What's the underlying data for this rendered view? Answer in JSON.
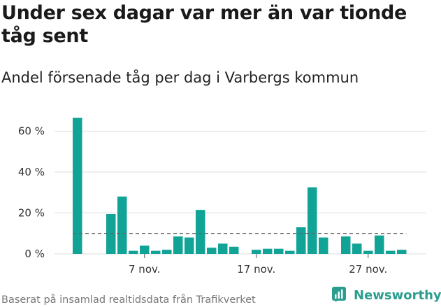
{
  "header": {
    "title": "Under sex dagar var mer än var tionde tåg sent",
    "subtitle": "Andel försenade tåg per dag i Varbergs kommun"
  },
  "footer": {
    "source": "Baserat på insamlad realtidsdata från Trafikverket",
    "brand": "Newsworthy"
  },
  "colors": {
    "bar": "#10a396",
    "grid": "#dddddd",
    "reference": "#666666",
    "brand": "#2a9d8f"
  },
  "chart_data": {
    "type": "bar",
    "title": "Andel försenade tåg per dag i Varbergs kommun",
    "xlabel": "",
    "ylabel": "",
    "y_unit": "%",
    "ylim": [
      0,
      66
    ],
    "yticks": [
      0,
      20,
      40,
      60
    ],
    "ytick_labels": [
      "0 %",
      "20 %",
      "40 %",
      "60 %"
    ],
    "x": [
      "2023-11-01",
      "2023-11-02",
      "2023-11-03",
      "2023-11-04",
      "2023-11-05",
      "2023-11-06",
      "2023-11-07",
      "2023-11-08",
      "2023-11-09",
      "2023-11-10",
      "2023-11-11",
      "2023-11-12",
      "2023-11-13",
      "2023-11-14",
      "2023-11-15",
      "2023-11-16",
      "2023-11-17",
      "2023-11-18",
      "2023-11-19",
      "2023-11-20",
      "2023-11-21",
      "2023-11-22",
      "2023-11-23",
      "2023-11-24",
      "2023-11-25",
      "2023-11-26",
      "2023-11-27",
      "2023-11-28",
      "2023-11-29",
      "2023-11-30"
    ],
    "values": [
      66.5,
      null,
      null,
      19.5,
      28,
      1.5,
      4,
      1.5,
      2,
      8.5,
      8,
      21.5,
      3,
      5,
      3.5,
      null,
      2,
      2.5,
      2.5,
      1.5,
      13,
      32.5,
      8,
      null,
      8.5,
      5,
      1.5,
      9,
      1.5,
      2
    ],
    "xticks": [
      "2023-11-07",
      "2023-11-17",
      "2023-11-27"
    ],
    "xtick_labels": [
      "7 nov.",
      "17 nov.",
      "27 nov."
    ],
    "reference_line": 10,
    "grid": true,
    "legend": "none"
  }
}
